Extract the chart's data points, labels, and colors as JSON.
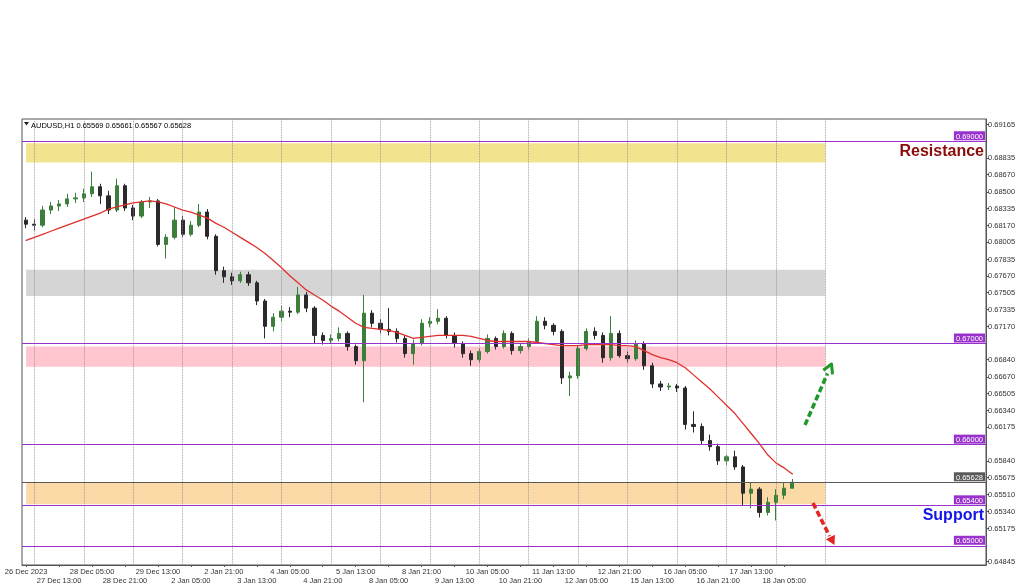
{
  "chart_data": {
    "type": "candlestick",
    "title": "AUDUSD,H1 0.65569 0.65661 0.65567 0.65628",
    "categories": [
      "26 Dec 2023",
      null,
      null,
      null,
      "27 Dec 13:00",
      null,
      null,
      null,
      "28 Dec 05:00",
      null,
      null,
      null,
      "28 Dec 21:00",
      null,
      null,
      null,
      "29 Dec 13:00",
      null,
      null,
      null,
      "2 Jan 05:00",
      null,
      null,
      null,
      "2 Jan 21:00",
      null,
      null,
      null,
      "3 Jan 13:00",
      null,
      null,
      null,
      "4 Jan 05:00",
      null,
      null,
      null,
      "4 Jan 21:00",
      null,
      null,
      null,
      "5 Jan 13:00",
      null,
      null,
      null,
      "8 Jan 05:00",
      null,
      null,
      null,
      "8 Jan 21:00",
      null,
      null,
      null,
      "9 Jan 13:00",
      null,
      null,
      null,
      "10 Jan 05:00",
      null,
      null,
      null,
      "10 Jan 21:00",
      null,
      null,
      null,
      "11 Jan 13:00",
      null,
      null,
      null,
      "12 Jan 05:00",
      null,
      null,
      null,
      "12 Jan 21:00",
      null,
      null,
      null,
      "15 Jan 13:00",
      null,
      null,
      null,
      "16 Jan 05:00",
      null,
      null,
      null,
      "16 Jan 21:00",
      null,
      null,
      null,
      "17 Jan 13:00",
      null,
      null,
      null,
      "18 Jan 05:00",
      null,
      null,
      null,
      null,
      null,
      null,
      null,
      null,
      null,
      null,
      null,
      null,
      null,
      null,
      null,
      null,
      null,
      null,
      null,
      null,
      null,
      null,
      null,
      null
    ],
    "ylim": [
      0.6481,
      0.6922
    ],
    "yticks": [
      0.69165,
      0.68835,
      {
        "value": 0.6867,
        "label": "0.68670"
      },
      {
        "value": 0.685,
        "label": "0.68500"
      },
      0.68335,
      {
        "value": 0.6817,
        "label": "0.68170"
      },
      0.68005,
      0.67835,
      {
        "value": 0.6767,
        "label": "0.67670"
      },
      0.67505,
      0.67335,
      {
        "value": 0.6717,
        "label": "0.67170"
      },
      {
        "value": 0.6684,
        "label": "0.66840"
      },
      {
        "value": 0.6667,
        "label": "0.66670"
      },
      0.66505,
      {
        "value": 0.6634,
        "label": "0.66340"
      },
      0.66175,
      {
        "value": 0.6584,
        "label": "0.65840"
      },
      0.65675,
      {
        "value": 0.6551,
        "label": "0.65510"
      },
      {
        "value": 0.6534,
        "label": "0.65340"
      },
      0.65175,
      0.64845
    ],
    "grid": "x",
    "series": [
      {
        "type": "candlestick",
        "ohlc": [
          [
            0.6822,
            0.6825,
            0.6814,
            0.6818
          ],
          [
            0.6818,
            0.6823,
            0.6812,
            0.6817
          ],
          [
            0.6817,
            0.6836,
            0.6815,
            0.6832
          ],
          [
            0.6832,
            0.684,
            0.6828,
            0.6836
          ],
          [
            0.6836,
            0.6842,
            0.6831,
            0.6838
          ],
          [
            0.6838,
            0.6848,
            0.6835,
            0.6843
          ],
          [
            0.6843,
            0.6849,
            0.6839,
            0.6844
          ],
          [
            0.6844,
            0.6853,
            0.684,
            0.6848
          ],
          [
            0.6848,
            0.687,
            0.6845,
            0.6855
          ],
          [
            0.6855,
            0.6858,
            0.6838,
            0.6846
          ],
          [
            0.6846,
            0.6851,
            0.6828,
            0.6832
          ],
          [
            0.6832,
            0.6863,
            0.683,
            0.6856
          ],
          [
            0.6856,
            0.6858,
            0.6831,
            0.6834
          ],
          [
            0.6834,
            0.6837,
            0.6822,
            0.6826
          ],
          [
            0.6826,
            0.6842,
            0.6824,
            0.684
          ],
          [
            0.684,
            0.6845,
            0.6834,
            0.6841
          ],
          [
            0.6841,
            0.6843,
            0.6796,
            0.6798
          ],
          [
            0.6798,
            0.6808,
            0.6784,
            0.6805
          ],
          [
            0.6805,
            0.6835,
            0.6803,
            0.6822
          ],
          [
            0.6822,
            0.6826,
            0.6805,
            0.6808
          ],
          [
            0.6808,
            0.6821,
            0.6806,
            0.6817
          ],
          [
            0.6817,
            0.6838,
            0.6815,
            0.683
          ],
          [
            0.683,
            0.6833,
            0.6803,
            0.6806
          ],
          [
            0.6806,
            0.6808,
            0.6768,
            0.6772
          ],
          [
            0.6772,
            0.6776,
            0.676,
            0.6766
          ],
          [
            0.6766,
            0.677,
            0.6758,
            0.6762
          ],
          [
            0.6762,
            0.6771,
            0.676,
            0.6768
          ],
          [
            0.6768,
            0.6771,
            0.6757,
            0.676
          ],
          [
            0.676,
            0.6762,
            0.6738,
            0.6742
          ],
          [
            0.6742,
            0.6744,
            0.6705,
            0.6717
          ],
          [
            0.6717,
            0.673,
            0.6712,
            0.6726
          ],
          [
            0.6726,
            0.6737,
            0.6722,
            0.6732
          ],
          [
            0.6732,
            0.6736,
            0.6726,
            0.6731
          ],
          [
            0.6731,
            0.6756,
            0.6729,
            0.6748
          ],
          [
            0.6748,
            0.6751,
            0.6731,
            0.6735
          ],
          [
            0.6735,
            0.6737,
            0.67,
            0.6708
          ],
          [
            0.6708,
            0.6711,
            0.6699,
            0.6703
          ],
          [
            0.6703,
            0.6709,
            0.67,
            0.6705
          ],
          [
            0.6705,
            0.6716,
            0.6702,
            0.671
          ],
          [
            0.671,
            0.6712,
            0.6693,
            0.6697
          ],
          [
            0.6697,
            0.6699,
            0.6679,
            0.6683
          ],
          [
            0.6683,
            0.6748,
            0.6642,
            0.673
          ],
          [
            0.673,
            0.6733,
            0.6716,
            0.672
          ],
          [
            0.672,
            0.6724,
            0.671,
            0.6714
          ],
          [
            0.6714,
            0.6735,
            0.6708,
            0.6712
          ],
          [
            0.6712,
            0.6715,
            0.6701,
            0.6705
          ],
          [
            0.6705,
            0.6708,
            0.6686,
            0.669
          ],
          [
            0.669,
            0.6704,
            0.6679,
            0.67
          ],
          [
            0.67,
            0.6724,
            0.6698,
            0.672
          ],
          [
            0.672,
            0.6726,
            0.6716,
            0.6722
          ],
          [
            0.6722,
            0.6734,
            0.6719,
            0.6725
          ],
          [
            0.6725,
            0.6727,
            0.6705,
            0.6708
          ],
          [
            0.6708,
            0.6711,
            0.6696,
            0.67
          ],
          [
            0.67,
            0.6702,
            0.6686,
            0.669
          ],
          [
            0.669,
            0.6693,
            0.6678,
            0.6684
          ],
          [
            0.6684,
            0.6695,
            0.6681,
            0.6692
          ],
          [
            0.6692,
            0.6709,
            0.669,
            0.6705
          ],
          [
            0.6705,
            0.6707,
            0.6694,
            0.6697
          ],
          [
            0.6697,
            0.6713,
            0.6695,
            0.671
          ],
          [
            0.671,
            0.6712,
            0.6689,
            0.6693
          ],
          [
            0.6693,
            0.67,
            0.669,
            0.6697
          ],
          [
            0.6697,
            0.6705,
            0.6694,
            0.6702
          ],
          [
            0.6702,
            0.6727,
            0.67,
            0.6722
          ],
          [
            0.6722,
            0.6726,
            0.6714,
            0.6718
          ],
          [
            0.6718,
            0.672,
            0.6708,
            0.6712
          ],
          [
            0.6712,
            0.6714,
            0.666,
            0.6666
          ],
          [
            0.6666,
            0.6672,
            0.6648,
            0.6668
          ],
          [
            0.6668,
            0.6698,
            0.6665,
            0.6695
          ],
          [
            0.6695,
            0.6715,
            0.6693,
            0.6712
          ],
          [
            0.6712,
            0.6716,
            0.6704,
            0.6708
          ],
          [
            0.6708,
            0.6711,
            0.6681,
            0.6686
          ],
          [
            0.6686,
            0.6727,
            0.6683,
            0.671
          ],
          [
            0.671,
            0.6713,
            0.6686,
            0.6688
          ],
          [
            0.6688,
            0.6692,
            0.6681,
            0.6685
          ],
          [
            0.6685,
            0.6703,
            0.6683,
            0.67
          ],
          [
            0.67,
            0.6702,
            0.6674,
            0.6678
          ],
          [
            0.6678,
            0.6681,
            0.6656,
            0.666
          ],
          [
            0.666,
            0.6663,
            0.6653,
            0.6657
          ],
          [
            0.6657,
            0.6661,
            0.6654,
            0.6658
          ],
          [
            0.6658,
            0.666,
            0.6652,
            0.6656
          ],
          [
            0.6656,
            0.6658,
            0.6615,
            0.662
          ],
          [
            0.662,
            0.6633,
            0.6612,
            0.6618
          ],
          [
            0.6618,
            0.6621,
            0.66,
            0.6604
          ],
          [
            0.6604,
            0.661,
            0.6594,
            0.6598
          ],
          [
            0.6598,
            0.6601,
            0.658,
            0.6584
          ],
          [
            0.6584,
            0.659,
            0.658,
            0.6588
          ],
          [
            0.6588,
            0.6594,
            0.6575,
            0.6578
          ],
          [
            0.6578,
            0.658,
            0.654,
            0.6552
          ],
          [
            0.6552,
            0.6563,
            0.6537,
            0.6556
          ],
          [
            0.6556,
            0.6558,
            0.6528,
            0.6533
          ],
          [
            0.6533,
            0.6548,
            0.653,
            0.6543
          ],
          [
            0.6543,
            0.6556,
            0.6525,
            0.655
          ],
          [
            0.655,
            0.6562,
            0.6546,
            0.6557
          ],
          [
            0.65569,
            0.65661,
            0.65567,
            0.65628
          ],
          null,
          null,
          null,
          null,
          null,
          null,
          null,
          null,
          null,
          null,
          null,
          null,
          null,
          null,
          null,
          null,
          null,
          null,
          null,
          null,
          null,
          null,
          null
        ],
        "colors": [
          "#2a2a2a",
          "#2a2a2a",
          "#3b7f3b",
          "#3b7f3b",
          "#3b7f3b",
          "#3b7f3b",
          "#3b7f3b",
          "#3b7f3b",
          "#3b7f3b",
          "#2a2a2a",
          "#2a2a2a",
          "#3b7f3b",
          "#2a2a2a",
          "#2a2a2a",
          "#3b7f3b",
          "#3b7f3b",
          "#2a2a2a",
          "#3b7f3b",
          "#3b7f3b",
          "#2a2a2a",
          "#3b7f3b",
          "#3b7f3b",
          "#2a2a2a",
          "#2a2a2a",
          "#2a2a2a",
          "#2a2a2a",
          "#3b7f3b",
          "#2a2a2a",
          "#2a2a2a",
          "#2a2a2a",
          "#3b7f3b",
          "#3b7f3b",
          "#2a2a2a",
          "#3b7f3b",
          "#2a2a2a",
          "#2a2a2a",
          "#2a2a2a",
          "#3b7f3b",
          "#3b7f3b",
          "#2a2a2a",
          "#2a2a2a",
          "#3b7f3b",
          "#2a2a2a",
          "#2a2a2a",
          "#2a2a2a",
          "#2a2a2a",
          "#2a2a2a",
          "#3b7f3b",
          "#3b7f3b",
          "#3b7f3b",
          "#3b7f3b",
          "#2a2a2a",
          "#2a2a2a",
          "#2a2a2a",
          "#2a2a2a",
          "#3b7f3b",
          "#3b7f3b",
          "#2a2a2a",
          "#3b7f3b",
          "#2a2a2a",
          "#3b7f3b",
          "#3b7f3b",
          "#3b7f3b",
          "#2a2a2a",
          "#2a2a2a",
          "#2a2a2a",
          "#3b7f3b",
          "#3b7f3b",
          "#3b7f3b",
          "#2a2a2a",
          "#2a2a2a",
          "#3b7f3b",
          "#2a2a2a",
          "#2a2a2a",
          "#3b7f3b",
          "#2a2a2a",
          "#2a2a2a",
          "#2a2a2a",
          "#3b7f3b",
          "#2a2a2a",
          "#2a2a2a",
          "#2a2a2a",
          "#2a2a2a",
          "#2a2a2a",
          "#2a2a2a",
          "#3b7f3b",
          "#2a2a2a",
          "#2a2a2a",
          "#3b7f3b",
          "#2a2a2a",
          "#3b7f3b",
          "#3b7f3b",
          "#3b7f3b",
          "#3b7f3b",
          null,
          null,
          null,
          null,
          null,
          null,
          null,
          null,
          null,
          null,
          null,
          null,
          null,
          null,
          null,
          null,
          null,
          null,
          null,
          null,
          null,
          null,
          null
        ]
      },
      {
        "type": "line",
        "color": "#e0302c",
        "values": [
          0.6802,
          0.6805,
          0.6808,
          0.6811,
          0.6814,
          0.6817,
          0.682,
          0.6823,
          0.6826,
          0.6829,
          0.6833,
          0.6835,
          0.6837,
          0.6839,
          0.684,
          0.6841,
          0.684,
          0.6838,
          0.6835,
          0.6832,
          0.683,
          0.6827,
          0.6824,
          0.6819,
          0.6815,
          0.681,
          0.6805,
          0.68,
          0.6795,
          0.6789,
          0.6782,
          0.6775,
          0.6767,
          0.676,
          0.6753,
          0.6748,
          0.6743,
          0.6737,
          0.6732,
          0.6726,
          0.672,
          0.6716,
          0.6715,
          0.6714,
          0.6713,
          0.6711,
          0.6708,
          0.6705,
          0.6706,
          0.6707,
          0.6708,
          0.6708,
          0.6708,
          0.6708,
          0.6707,
          0.6705,
          0.6703,
          0.6702,
          0.6702,
          0.6702,
          0.6702,
          0.6702,
          0.6701,
          0.67,
          0.6699,
          0.6698,
          0.6698,
          0.6698,
          0.6699,
          0.6699,
          0.6699,
          0.6699,
          0.6698,
          0.6698,
          0.6697,
          0.6693,
          0.6689,
          0.6686,
          0.6684,
          0.6681,
          0.6676,
          0.6669,
          0.6662,
          0.6655,
          0.6647,
          0.6639,
          0.6631,
          0.6621,
          0.6611,
          0.6601,
          0.659,
          0.6582,
          0.6577,
          0.6571,
          null,
          null,
          null,
          null,
          null,
          null,
          null,
          null,
          null,
          null,
          null,
          null,
          null,
          null,
          null,
          null,
          null,
          null,
          null,
          null,
          null,
          null,
          null
        ]
      }
    ],
    "ref_lines": [
      {
        "axis": "y",
        "value": 0.69,
        "label": "0.69000",
        "color": "#9932cc"
      },
      {
        "axis": "y",
        "value": 0.67,
        "label": "0.67000",
        "color": "#9932cc"
      },
      {
        "axis": "y",
        "value": 0.66,
        "label": "0.66000",
        "color": "#9932cc"
      },
      {
        "axis": "y",
        "value": 0.654,
        "label": "0.65400",
        "color": "#9932cc"
      },
      {
        "axis": "y",
        "value": 0.65,
        "label": "0.65000",
        "color": "#9932cc"
      },
      {
        "axis": "y",
        "value": 0.65628,
        "label": "0.65628",
        "color": "#5a5a5a"
      }
    ],
    "bands": [
      {
        "axis": "y",
        "from": 0.6879,
        "to": 0.6898,
        "color": "#f2e38e"
      },
      {
        "axis": "y",
        "from": 0.6747,
        "to": 0.6773,
        "color": "#d5d5d5"
      },
      {
        "axis": "y",
        "from": 0.6677,
        "to": 0.6697,
        "color": "#ffc6cf"
      },
      {
        "axis": "y",
        "from": 0.6541,
        "to": 0.6563,
        "color": "#fcdaa8"
      }
    ],
    "annotations": [
      {
        "text": "Resistance",
        "y": 0.69
      },
      {
        "text": "Support",
        "y": 0.654
      }
    ]
  }
}
